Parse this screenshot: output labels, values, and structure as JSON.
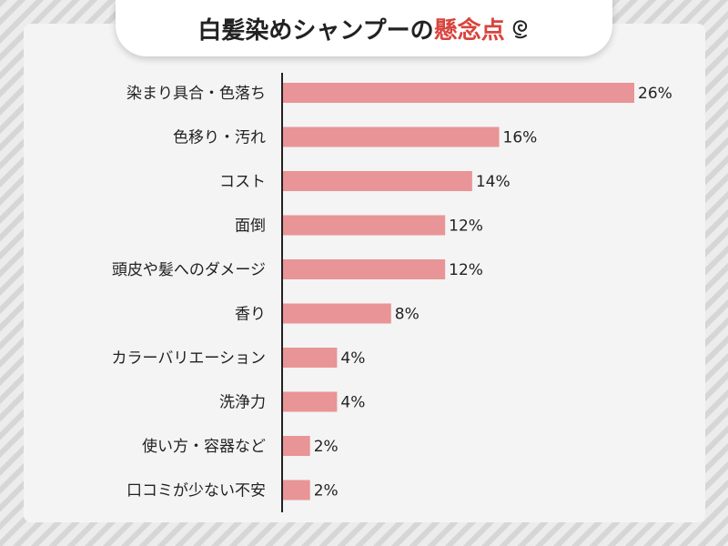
{
  "title": {
    "main": "白髪染めシャンプーの",
    "accent": "懸念点"
  },
  "colors": {
    "bar": "#e99496",
    "accent": "#d9443c",
    "axis": "#222222"
  },
  "chart_data": {
    "type": "bar",
    "orientation": "horizontal",
    "categories": [
      "染まり具合・色落ち",
      "色移り・汚れ",
      "コスト",
      "面倒",
      "頭皮や髪へのダメージ",
      "香り",
      "カラーバリエーション",
      "洗浄力",
      "使い方・容器など",
      "口コミが少ない不安"
    ],
    "values": [
      26,
      16,
      14,
      12,
      12,
      8,
      4,
      4,
      2,
      2
    ],
    "value_labels": [
      "26%",
      "16%",
      "14%",
      "12%",
      "12%",
      "8%",
      "4%",
      "4%",
      "2%",
      "2%"
    ],
    "xlim": [
      0,
      26
    ],
    "grid": false,
    "legend": "none"
  }
}
